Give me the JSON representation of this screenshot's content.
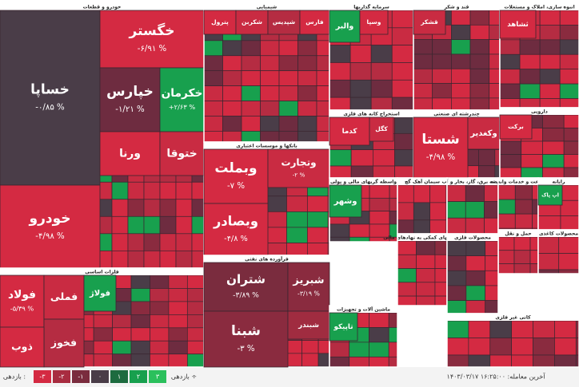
{
  "sectors": [
    {
      "title": "خودرو و قطعات",
      "tiles": [
        {
          "label": "خساپا",
          "change": "-۰/۸۵ %",
          "color": "#4a3d48"
        },
        {
          "label": "خودرو",
          "change": "-۴/۹۸ %",
          "color": "#d42a42"
        },
        {
          "label": "خگستر",
          "change": "-۶/۹۱ %",
          "color": "#d42a42"
        },
        {
          "label": "خپارس",
          "change": "-۱/۲۱ %",
          "color": "#6e2c40"
        },
        {
          "label": "خکرمان",
          "change": "+۲/۶۳ %",
          "color": "#18a04e"
        },
        {
          "label": "ورنا",
          "color": "#d42a42"
        },
        {
          "label": "ختوقا",
          "color": "#c92b42"
        }
      ]
    },
    {
      "title": "فلزات اساسی",
      "tiles": [
        {
          "label": "فولاد",
          "change": "-۵/۳۹ %",
          "color": "#d42a42"
        },
        {
          "label": "فملی",
          "color": "#c92b42"
        },
        {
          "label": "فخوز",
          "color": "#b52c42"
        },
        {
          "label": "ذوب",
          "color": "#d42a42"
        },
        {
          "label": "فولاژ",
          "color": "#18a04e"
        }
      ]
    },
    {
      "title": "شیمیایی",
      "tiles": [
        {
          "label": "پترول",
          "color": "#d42a42"
        },
        {
          "label": "شکربن",
          "color": "#c92b42"
        },
        {
          "label": "شپدیس",
          "color": "#b52c42"
        },
        {
          "label": "فارس",
          "color": "#d42a42"
        }
      ]
    },
    {
      "title": "بانکها و موسسات اعتباری",
      "tiles": [
        {
          "label": "وبملت",
          "change": "-۷ %",
          "color": "#d42a42"
        },
        {
          "label": "وبصادر",
          "change": "-۴/۸ %",
          "color": "#d42a42"
        },
        {
          "label": "وتجارت",
          "change": "-۲ %",
          "color": "#c92b42"
        }
      ]
    },
    {
      "title": "فرآورده های نفتی",
      "tiles": [
        {
          "label": "شتران",
          "change": "-۳/۸۹ %",
          "color": "#7a2c3e"
        },
        {
          "label": "شبنا",
          "change": "-۳ %",
          "color": "#8a2b3f"
        },
        {
          "label": "شبریز",
          "change": "-۳/۱۹ %",
          "color": "#8a2b3f"
        },
        {
          "label": "شبندر",
          "color": "#a02c40"
        }
      ]
    },
    {
      "title": "سرمایه گذاریها",
      "tiles": [
        {
          "label": "والبر",
          "color": "#18a04e"
        },
        {
          "label": "وسپا",
          "color": "#d42a42"
        }
      ]
    },
    {
      "title": "قند و شکر",
      "tiles": [
        {
          "label": "قشکر",
          "color": "#c92b42"
        }
      ]
    },
    {
      "title": "انبوه سازی، املاک و مستغلات",
      "tiles": [
        {
          "label": "ثشاهد",
          "color": "#d42a42"
        }
      ]
    },
    {
      "title": "استخراج کانه های فلزی",
      "tiles": [
        {
          "label": "کدما",
          "color": "#d42a42"
        },
        {
          "label": "کگل",
          "color": "#c92b42"
        }
      ]
    },
    {
      "title": "چندرشته ای صنعتی",
      "tiles": [
        {
          "label": "شستا",
          "change": "-۴/۹۸ %",
          "color": "#d42a42"
        },
        {
          "label": "وکغدیر",
          "color": "#c92b42"
        }
      ]
    },
    {
      "title": "دارویی",
      "tiles": [
        {
          "label": "برکت",
          "color": "#d42a42"
        }
      ]
    },
    {
      "title": "واسطه گریهای مالی و پولی",
      "tiles": [
        {
          "label": "وشهر",
          "color": "#18a04e"
        }
      ]
    },
    {
      "title": "سیمان آهک گچ",
      "tiles": []
    },
    {
      "title": "عرضه برق، گاز، بخار و آب",
      "tiles": []
    },
    {
      "title": "زراعت و خدمات وابسته",
      "tiles": []
    },
    {
      "title": "رایانه",
      "tiles": [
        {
          "label": "اپ پاک",
          "color": "#18a04e"
        }
      ]
    },
    {
      "title": "فعالیتهای کمکی به نهادهای مالی",
      "tiles": []
    },
    {
      "title": "حمل و نقل",
      "tiles": []
    },
    {
      "title": "محصولات کاغذی",
      "tiles": []
    },
    {
      "title": "ماشین آلات و تجهیزات",
      "tiles": [
        {
          "label": "تاپیکو",
          "color": "#18a04e"
        }
      ]
    },
    {
      "title": "محصولات فلزی",
      "tiles": []
    },
    {
      "title": "کانی غیر فلزی",
      "tiles": []
    }
  ],
  "legend": {
    "title": "بازدهی :",
    "items": [
      {
        "label": "-۳",
        "color": "#d42a42"
      },
      {
        "label": "-۲",
        "color": "#a82c40"
      },
      {
        "label": "-۱",
        "color": "#7a2c3e"
      },
      {
        "label": "۰",
        "color": "#4a3d48"
      },
      {
        "label": "۱",
        "color": "#1d6b3f"
      },
      {
        "label": "۲",
        "color": "#18a04e"
      },
      {
        "label": "۳",
        "color": "#2bc05c"
      }
    ],
    "sort": "بازدهی ÷"
  },
  "footer": {
    "last_trade": "آخرین معامله: ۱۶:۲۵:۰۰ ۱۴۰۳/۰۳/۱۷"
  }
}
